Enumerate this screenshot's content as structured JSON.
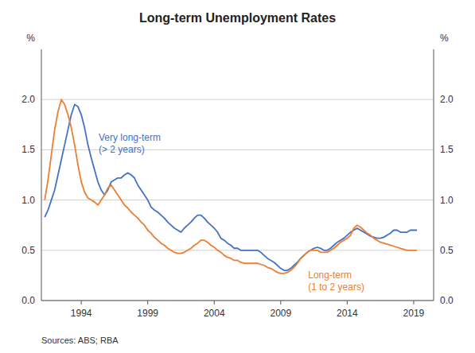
{
  "chart_data": {
    "type": "line",
    "title": "Long-term Unemployment Rates",
    "ylabel": "%",
    "y2label": "%",
    "source": "Sources:   ABS; RBA",
    "annotations": [
      "Very long-term",
      "(> 2 years)",
      "Long-term",
      "(1 to 2 years)"
    ],
    "grid": true,
    "xlim": [
      1991.0,
      2020.5
    ],
    "xticks": [
      1994,
      1999,
      2004,
      2009,
      2014,
      2019
    ],
    "ylim": [
      0.0,
      2.5
    ],
    "yticks": [
      {
        "value": 0.0,
        "label": "0.0"
      },
      {
        "value": 0.5,
        "label": "0.5"
      },
      {
        "value": 1.0,
        "label": "1.0"
      },
      {
        "value": 1.5,
        "label": "1.5"
      },
      {
        "value": 2.0,
        "label": "2.0"
      }
    ],
    "y2lim": [
      0.0,
      2.5
    ],
    "y2ticks": [
      {
        "value": 0.0,
        "label": "0.0"
      },
      {
        "value": 0.5,
        "label": "0.5"
      },
      {
        "value": 1.0,
        "label": "1.0"
      },
      {
        "value": 1.5,
        "label": "1.5"
      },
      {
        "value": 2.0,
        "label": "2.0"
      }
    ],
    "x": [
      1991.25,
      1991.5,
      1991.75,
      1992,
      1992.25,
      1992.5,
      1992.75,
      1993,
      1993.25,
      1993.5,
      1993.75,
      1994,
      1994.25,
      1994.5,
      1994.75,
      1995,
      1995.25,
      1995.5,
      1995.75,
      1996,
      1996.25,
      1996.5,
      1996.75,
      1997,
      1997.25,
      1997.5,
      1997.75,
      1998,
      1998.25,
      1998.5,
      1998.75,
      1999,
      1999.25,
      1999.5,
      1999.75,
      2000,
      2000.25,
      2000.5,
      2000.75,
      2001,
      2001.25,
      2001.5,
      2001.75,
      2002,
      2002.25,
      2002.5,
      2002.75,
      2003,
      2003.25,
      2003.5,
      2003.75,
      2004,
      2004.25,
      2004.5,
      2004.75,
      2005,
      2005.25,
      2005.5,
      2005.75,
      2006,
      2006.25,
      2006.5,
      2006.75,
      2007,
      2007.25,
      2007.5,
      2007.75,
      2008,
      2008.25,
      2008.5,
      2008.75,
      2009,
      2009.25,
      2009.5,
      2009.75,
      2010,
      2010.25,
      2010.5,
      2010.75,
      2011,
      2011.25,
      2011.5,
      2011.75,
      2012,
      2012.25,
      2012.5,
      2012.75,
      2013,
      2013.25,
      2013.5,
      2013.75,
      2014,
      2014.25,
      2014.5,
      2014.75,
      2015,
      2015.25,
      2015.5,
      2015.75,
      2016,
      2016.25,
      2016.5,
      2016.75,
      2017,
      2017.25,
      2017.5,
      2017.75,
      2018,
      2018.25,
      2018.5,
      2018.75,
      2019,
      2019.25
    ],
    "series": [
      {
        "color": "#4472C4",
        "values": [
          0.83,
          0.9,
          1.0,
          1.1,
          1.25,
          1.4,
          1.55,
          1.7,
          1.85,
          1.95,
          1.93,
          1.85,
          1.72,
          1.55,
          1.42,
          1.3,
          1.18,
          1.1,
          1.05,
          1.1,
          1.18,
          1.2,
          1.22,
          1.22,
          1.25,
          1.27,
          1.25,
          1.22,
          1.15,
          1.1,
          1.05,
          1.0,
          0.93,
          0.9,
          0.88,
          0.85,
          0.82,
          0.78,
          0.75,
          0.72,
          0.7,
          0.68,
          0.72,
          0.75,
          0.78,
          0.82,
          0.85,
          0.85,
          0.82,
          0.78,
          0.75,
          0.72,
          0.68,
          0.62,
          0.6,
          0.57,
          0.55,
          0.52,
          0.52,
          0.5,
          0.5,
          0.5,
          0.5,
          0.5,
          0.5,
          0.48,
          0.45,
          0.42,
          0.4,
          0.38,
          0.35,
          0.32,
          0.3,
          0.3,
          0.32,
          0.35,
          0.38,
          0.42,
          0.45,
          0.48,
          0.5,
          0.52,
          0.53,
          0.52,
          0.5,
          0.5,
          0.52,
          0.55,
          0.58,
          0.6,
          0.62,
          0.65,
          0.68,
          0.7,
          0.72,
          0.7,
          0.68,
          0.66,
          0.64,
          0.63,
          0.62,
          0.62,
          0.63,
          0.65,
          0.67,
          0.7,
          0.7,
          0.68,
          0.68,
          0.68,
          0.7,
          0.7,
          0.7
        ]
      },
      {
        "color": "#ED7D31",
        "values": [
          1.0,
          1.2,
          1.45,
          1.7,
          1.88,
          2.0,
          1.95,
          1.85,
          1.72,
          1.55,
          1.35,
          1.18,
          1.08,
          1.02,
          1.0,
          0.98,
          0.95,
          1.0,
          1.05,
          1.12,
          1.15,
          1.1,
          1.05,
          1.0,
          0.95,
          0.92,
          0.88,
          0.85,
          0.82,
          0.78,
          0.75,
          0.7,
          0.67,
          0.63,
          0.6,
          0.57,
          0.55,
          0.52,
          0.5,
          0.48,
          0.47,
          0.47,
          0.48,
          0.5,
          0.52,
          0.55,
          0.57,
          0.6,
          0.6,
          0.58,
          0.55,
          0.53,
          0.5,
          0.48,
          0.45,
          0.43,
          0.42,
          0.4,
          0.4,
          0.38,
          0.37,
          0.37,
          0.37,
          0.37,
          0.37,
          0.36,
          0.35,
          0.33,
          0.32,
          0.3,
          0.28,
          0.27,
          0.27,
          0.28,
          0.3,
          0.33,
          0.37,
          0.42,
          0.45,
          0.48,
          0.5,
          0.5,
          0.5,
          0.48,
          0.48,
          0.48,
          0.5,
          0.52,
          0.55,
          0.58,
          0.6,
          0.62,
          0.65,
          0.72,
          0.75,
          0.73,
          0.7,
          0.67,
          0.65,
          0.62,
          0.6,
          0.58,
          0.57,
          0.56,
          0.55,
          0.54,
          0.53,
          0.52,
          0.51,
          0.5,
          0.5,
          0.5,
          0.5
        ]
      }
    ]
  }
}
